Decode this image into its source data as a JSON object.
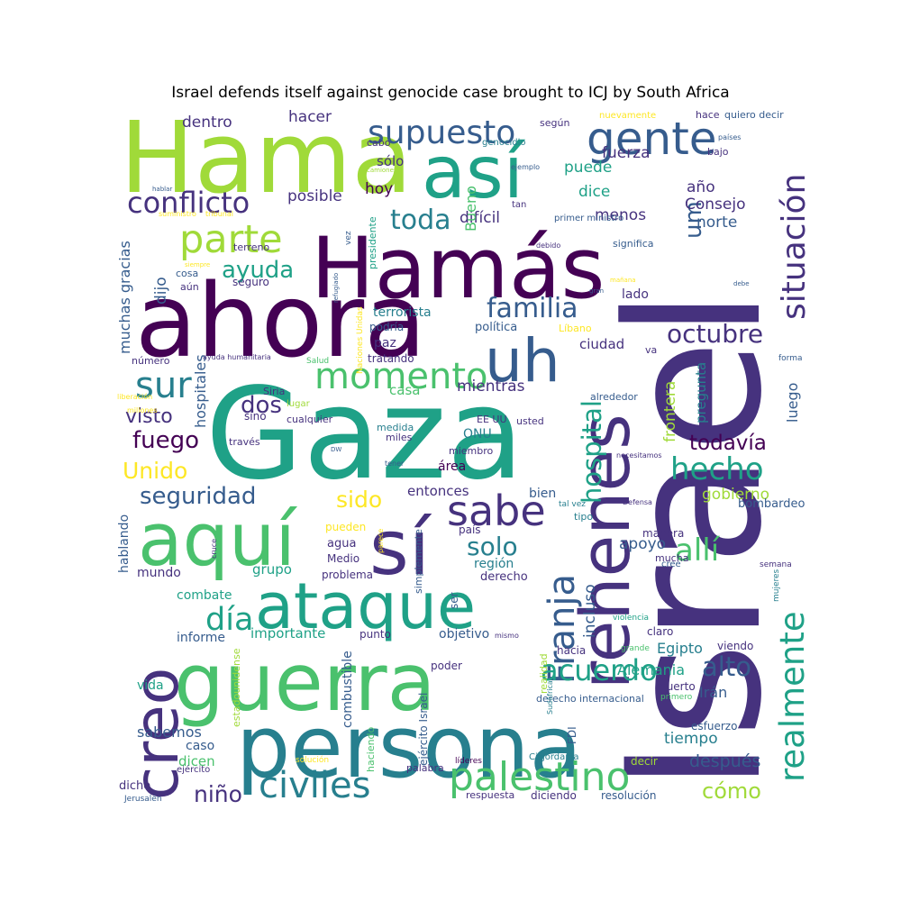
{
  "title": "Israel defends itself against genocide case brought to ICJ by South Africa",
  "colors": {
    "background": "#ffffff",
    "palette": [
      "#440154",
      "#46327e",
      "#365c8d",
      "#277f8e",
      "#1fa187",
      "#4ac16d",
      "#a0da39",
      "#fde725"
    ]
  },
  "words": [
    {
      "text": "Gaza",
      "c": 4
    },
    {
      "text": "Israel",
      "c": 1
    },
    {
      "text": "ahora",
      "c": 0
    },
    {
      "text": "Hama",
      "c": 6
    },
    {
      "text": "Hamás",
      "c": 0
    },
    {
      "text": "persona",
      "c": 3
    },
    {
      "text": "guerra",
      "c": 5
    },
    {
      "text": "aquí",
      "c": 5
    },
    {
      "text": "así",
      "c": 4
    },
    {
      "text": "rehenes",
      "c": 1
    },
    {
      "text": "sí",
      "c": 1
    },
    {
      "text": "creo",
      "c": 1
    },
    {
      "text": "ataque",
      "c": 4
    },
    {
      "text": "uh",
      "c": 2
    },
    {
      "text": "supuesto",
      "c": 2
    },
    {
      "text": "palestino",
      "c": 5
    },
    {
      "text": "gente",
      "c": 2
    },
    {
      "text": "sabe",
      "c": 1
    },
    {
      "text": "momento",
      "c": 5
    },
    {
      "text": "parte",
      "c": 6
    },
    {
      "text": "civiles",
      "c": 3
    },
    {
      "text": "Franja",
      "c": 2
    },
    {
      "text": "situación",
      "c": 1
    },
    {
      "text": "realmente",
      "c": 4
    },
    {
      "text": "conflicto",
      "c": 1
    },
    {
      "text": "familia",
      "c": 2
    },
    {
      "text": "día",
      "c": 4
    },
    {
      "text": "sur",
      "c": 3
    },
    {
      "text": "hecho",
      "c": 4
    },
    {
      "text": "allí",
      "c": 5
    },
    {
      "text": "acuerdo",
      "c": 4
    },
    {
      "text": "octubre",
      "c": 1
    },
    {
      "text": "toda",
      "c": 3
    },
    {
      "text": "hospital",
      "c": 4
    },
    {
      "text": "seguridad",
      "c": 2
    },
    {
      "text": "ayuda",
      "c": 4
    },
    {
      "text": "fuego",
      "c": 0
    },
    {
      "text": "alto",
      "c": 2
    },
    {
      "text": "solo",
      "c": 3
    },
    {
      "text": "Unido",
      "c": 7
    },
    {
      "text": "todavía",
      "c": 0
    },
    {
      "text": "cómo",
      "c": 6
    },
    {
      "text": "niño",
      "c": 1
    },
    {
      "text": "um",
      "c": 2
    },
    {
      "text": "dos",
      "c": 1
    },
    {
      "text": "sido",
      "c": 7
    },
    {
      "text": "después",
      "c": 2
    },
    {
      "text": "mientras",
      "c": 1
    },
    {
      "text": "visto",
      "c": 1
    },
    {
      "text": "puede",
      "c": 4
    },
    {
      "text": "dice",
      "c": 4
    },
    {
      "text": "menos",
      "c": 1
    },
    {
      "text": "norte",
      "c": 2
    },
    {
      "text": "fuerza",
      "c": 1
    },
    {
      "text": "Consejo",
      "c": 1
    },
    {
      "text": "año",
      "c": 1
    },
    {
      "text": "frontera",
      "c": 6
    },
    {
      "text": "gobierno",
      "c": 6
    },
    {
      "text": "incluso",
      "c": 2
    },
    {
      "text": "apoyo",
      "c": 2
    },
    {
      "text": "Egipto",
      "c": 3
    },
    {
      "text": "Alemania",
      "c": 4
    },
    {
      "text": "Irán",
      "c": 2
    },
    {
      "text": "tiempo",
      "c": 3
    },
    {
      "text": "luego",
      "c": 2
    },
    {
      "text": "pregunta",
      "c": 3
    },
    {
      "text": "bombardeo",
      "c": 2
    },
    {
      "text": "dentro",
      "c": 1
    },
    {
      "text": "hacer",
      "c": 1
    },
    {
      "text": "hoy",
      "c": 0
    },
    {
      "text": "posible",
      "c": 1
    },
    {
      "text": "difícil",
      "c": 1
    },
    {
      "text": "Bueno",
      "c": 5
    },
    {
      "text": "sólo",
      "c": 1
    },
    {
      "text": "dijo",
      "c": 2
    },
    {
      "text": "muchas gracias",
      "c": 2
    },
    {
      "text": "hospitales",
      "c": 2
    },
    {
      "text": "lado",
      "c": 1
    },
    {
      "text": "ciudad",
      "c": 1
    },
    {
      "text": "paz",
      "c": 1
    },
    {
      "text": "terrorista",
      "c": 3
    },
    {
      "text": "podría",
      "c": 2
    },
    {
      "text": "política",
      "c": 2
    },
    {
      "text": "Líbano",
      "c": 7
    },
    {
      "text": "casa",
      "c": 5
    },
    {
      "text": "ONU",
      "c": 3
    },
    {
      "text": "área",
      "c": 0
    },
    {
      "text": "entonces",
      "c": 1
    },
    {
      "text": "bien",
      "c": 2
    },
    {
      "text": "región",
      "c": 3
    },
    {
      "text": "derecho",
      "c": 1
    },
    {
      "text": "grupo",
      "c": 4
    },
    {
      "text": "mundo",
      "c": 1
    },
    {
      "text": "combate",
      "c": 4
    },
    {
      "text": "importante",
      "c": 4
    },
    {
      "text": "informe",
      "c": 2
    },
    {
      "text": "vida",
      "c": 4
    },
    {
      "text": "sabemos",
      "c": 2
    },
    {
      "text": "caso",
      "c": 2
    },
    {
      "text": "dicen",
      "c": 5
    },
    {
      "text": "dicho",
      "c": 1
    },
    {
      "text": "hablando",
      "c": 2
    },
    {
      "text": "objetivo",
      "c": 2
    },
    {
      "text": "combustible",
      "c": 2
    },
    {
      "text": "punto",
      "c": 1
    },
    {
      "text": "poder",
      "c": 1
    },
    {
      "text": "claro",
      "c": 1
    },
    {
      "text": "hacia",
      "c": 1
    },
    {
      "text": "viendo",
      "c": 1
    },
    {
      "text": "muerto",
      "c": 1
    },
    {
      "text": "esfuerzo",
      "c": 2
    },
    {
      "text": "decir",
      "c": 6
    },
    {
      "text": "resolución",
      "c": 2
    },
    {
      "text": "diciendo",
      "c": 1
    },
    {
      "text": "respuesta",
      "c": 1
    },
    {
      "text": "palabra",
      "c": 1
    },
    {
      "text": "líderes",
      "c": 0
    },
    {
      "text": "FDI",
      "c": 2
    },
    {
      "text": "haciendo",
      "c": 5
    },
    {
      "text": "ejército Israel",
      "c": 2
    },
    {
      "text": "realidad",
      "c": 6
    },
    {
      "text": "derecho internacional",
      "c": 2
    },
    {
      "text": "primero",
      "c": 5
    },
    {
      "text": "grande",
      "c": 5
    },
    {
      "text": "violencia",
      "c": 4
    },
    {
      "text": "Sudáfrica",
      "c": 3
    },
    {
      "text": "mismo",
      "c": 1
    },
    {
      "text": "ser",
      "c": 2
    },
    {
      "text": "simplemente",
      "c": 2
    },
    {
      "text": "problema",
      "c": 1
    },
    {
      "text": "parece",
      "c": 7
    },
    {
      "text": "pueden",
      "c": 7
    },
    {
      "text": "agua",
      "c": 1
    },
    {
      "text": "Medio",
      "c": 1
    },
    {
      "text": "país",
      "c": 1
    },
    {
      "text": "tipo",
      "c": 3
    },
    {
      "text": "manera",
      "c": 1
    },
    {
      "text": "mucha",
      "c": 1
    },
    {
      "text": "cree",
      "c": 2
    },
    {
      "text": "semana",
      "c": 1
    },
    {
      "text": "mujeres",
      "c": 3
    },
    {
      "text": "cruce",
      "c": 1
    },
    {
      "text": "estadounidense",
      "c": 6
    },
    {
      "text": "solución",
      "c": 7
    },
    {
      "text": "ejército",
      "c": 1
    },
    {
      "text": "Jerusalén",
      "c": 2
    },
    {
      "text": "Cisjordania",
      "c": 3
    },
    {
      "text": "necesitamos",
      "c": 1
    },
    {
      "text": "Defensa",
      "c": 1
    },
    {
      "text": "tal vez",
      "c": 3
    },
    {
      "text": "alrededor",
      "c": 2
    },
    {
      "text": "forma",
      "c": 2
    },
    {
      "text": "EE UU",
      "c": 1
    },
    {
      "text": "usted",
      "c": 1
    },
    {
      "text": "medida",
      "c": 3
    },
    {
      "text": "miles",
      "c": 1
    },
    {
      "text": "miembro",
      "c": 1
    },
    {
      "text": "cualquier",
      "c": 1
    },
    {
      "text": "Siria",
      "c": 1
    },
    {
      "text": "lugar",
      "c": 6
    },
    {
      "text": "sino",
      "c": 1
    },
    {
      "text": "través",
      "c": 1
    },
    {
      "text": "DW",
      "c": 2
    },
    {
      "text": "tener",
      "c": 2
    },
    {
      "text": "tratando",
      "c": 1
    },
    {
      "text": "Salud",
      "c": 5
    },
    {
      "text": "número",
      "c": 1
    },
    {
      "text": "ayuda humanitaria",
      "c": 1
    },
    {
      "text": "liberación",
      "c": 7
    },
    {
      "text": "millones",
      "c": 7
    },
    {
      "text": "seguro",
      "c": 1
    },
    {
      "text": "aún",
      "c": 1
    },
    {
      "text": "cosa",
      "c": 2
    },
    {
      "text": "terreno",
      "c": 1
    },
    {
      "text": "siempre",
      "c": 7
    },
    {
      "text": "suministro",
      "c": 7
    },
    {
      "text": "tribunal",
      "c": 7
    },
    {
      "text": "hablar",
      "c": 2
    },
    {
      "text": "Naciones Unidas",
      "c": 7
    },
    {
      "text": "refugiado",
      "c": 2
    },
    {
      "text": "vez",
      "c": 2
    },
    {
      "text": "presidente",
      "c": 4
    },
    {
      "text": "primer ministro",
      "c": 2
    },
    {
      "text": "significa",
      "c": 2
    },
    {
      "text": "debido",
      "c": 1
    },
    {
      "text": "mañana",
      "c": 7
    },
    {
      "text": "gran",
      "c": 2
    },
    {
      "text": "debe",
      "c": 2
    },
    {
      "text": "va",
      "c": 1
    },
    {
      "text": "tan",
      "c": 1
    },
    {
      "text": "ejemplo",
      "c": 2
    },
    {
      "text": "camiones",
      "c": 6
    },
    {
      "text": "cabo",
      "c": 1
    },
    {
      "text": "genocidio",
      "c": 3
    },
    {
      "text": "según",
      "c": 1
    },
    {
      "text": "nuevamente",
      "c": 7
    },
    {
      "text": "hace",
      "c": 1
    },
    {
      "text": "quiero decir",
      "c": 2
    },
    {
      "text": "países",
      "c": 2
    },
    {
      "text": "bajo",
      "c": 1
    }
  ]
}
